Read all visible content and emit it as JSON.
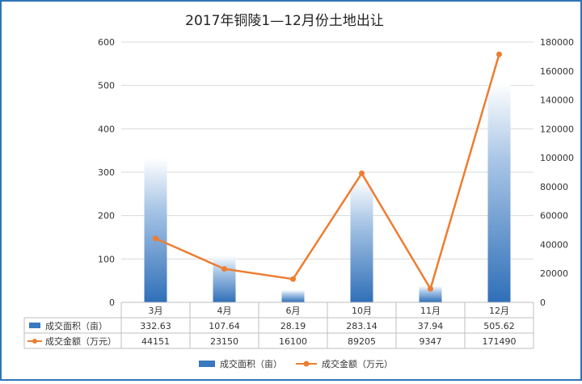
{
  "chart_data": {
    "type": "bar",
    "title": "2017年铜陵1—12月份土地出让",
    "categories": [
      "3月",
      "4月",
      "6月",
      "10月",
      "11月",
      "12月"
    ],
    "series": [
      {
        "name": "成交面积（亩）",
        "type": "bar",
        "axis": "left",
        "values": [
          332.63,
          107.64,
          28.19,
          283.14,
          37.94,
          505.62
        ],
        "labels": [
          "332.63",
          "107.64",
          "28.19",
          "283.14",
          "37.94",
          "505.62"
        ]
      },
      {
        "name": "成交金额（万元）",
        "type": "line",
        "axis": "right",
        "values": [
          44151,
          23150,
          16100,
          89205,
          9347,
          171490
        ],
        "labels": [
          "44151",
          "23150",
          "16100",
          "89205",
          "9347",
          "171490"
        ]
      }
    ],
    "y_left": {
      "min": 0,
      "max": 600,
      "ticks": [
        "0",
        "100",
        "200",
        "300",
        "400",
        "500",
        "600"
      ]
    },
    "y_right": {
      "min": 0,
      "max": 180000,
      "ticks": [
        "0",
        "20000",
        "40000",
        "60000",
        "80000",
        "100000",
        "120000",
        "140000",
        "160000",
        "180000"
      ]
    },
    "gridlines": true,
    "data_table": true,
    "legend_position": "bottom",
    "colors": {
      "bar": "#3a78c0",
      "line": "#ed7d31",
      "grid": "#d9d9d9",
      "frame": "#2e74b5"
    }
  }
}
